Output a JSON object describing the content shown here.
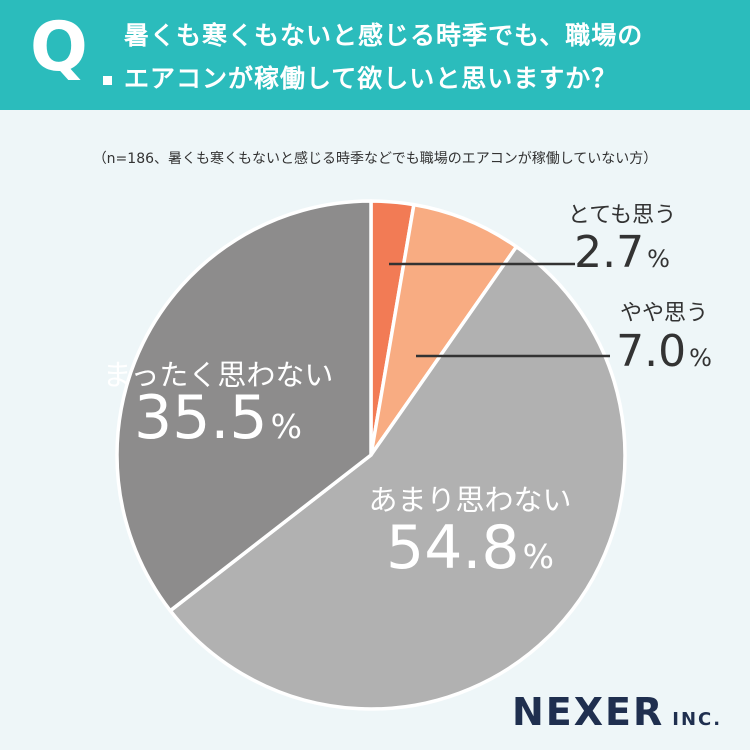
{
  "header": {
    "q_mark": "Q",
    "question_line1": "暑くも寒くもないと感じる時季でも、職場の",
    "question_line2": "エアコンが稼働して欲しいと思いますか？"
  },
  "subtitle": "（n=186、暑くも寒くもないと感じる時季などでも職場のエアコンが稼働していない方）",
  "chart_data": {
    "type": "pie",
    "title": "暑くも寒くもないと感じる時季でも、職場のエアコンが稼働して欲しいと思いますか？",
    "n": 186,
    "unit": "%",
    "start": "12 o'clock, clockwise",
    "slices": [
      {
        "label": "とても思う",
        "value": 2.7,
        "color": "#f27b55"
      },
      {
        "label": "やや思う",
        "value": 7.0,
        "color": "#f8ac82"
      },
      {
        "label": "あまり思わない",
        "value": 54.8,
        "color": "#b1b1b1"
      },
      {
        "label": "まったく思わない",
        "value": 35.5,
        "color": "#8d8c8c"
      }
    ],
    "label_colors": {
      "outside": "#333333",
      "inside": "#ffffff"
    }
  },
  "logo": {
    "main": "NEXER",
    "sub": "INC."
  }
}
